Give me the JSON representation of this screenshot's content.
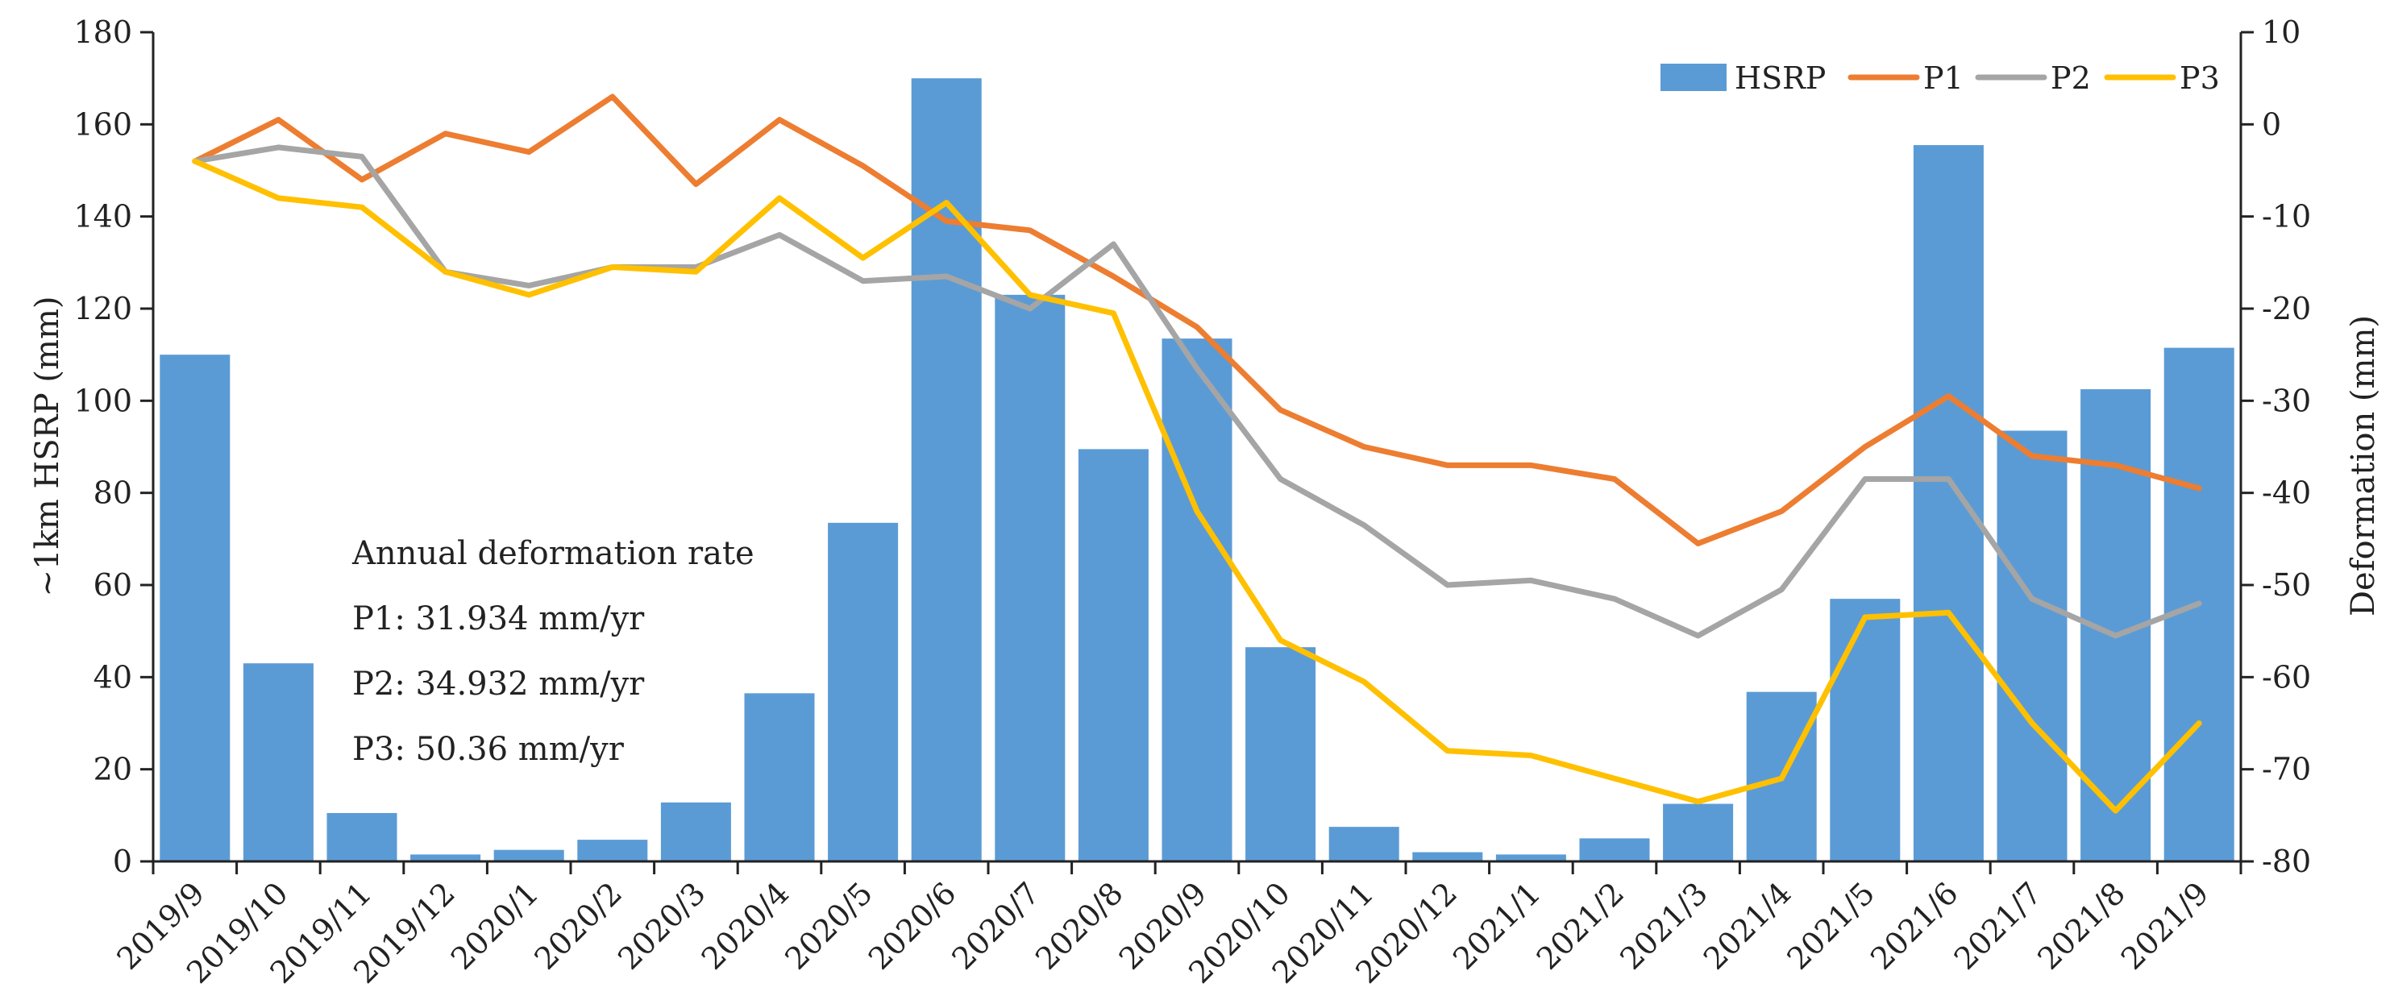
{
  "chart_data": {
    "type": "bar+line",
    "categories": [
      "2019/9",
      "2019/10",
      "2019/11",
      "2019/12",
      "2020/1",
      "2020/2",
      "2020/3",
      "2020/4",
      "2020/5",
      "2020/6",
      "2020/7",
      "2020/8",
      "2020/9",
      "2020/10",
      "2020/11",
      "2020/12",
      "2021/1",
      "2021/2",
      "2021/3",
      "2021/4",
      "2021/5",
      "2021/6",
      "2021/7",
      "2021/8",
      "2021/9"
    ],
    "bars": {
      "name": "HSRP",
      "axis": "left",
      "color": "#5B9BD5",
      "values": [
        110,
        43,
        10.5,
        1.5,
        2.5,
        4.7,
        12.8,
        36.5,
        73.5,
        170,
        123,
        89.5,
        113.5,
        46.5,
        7.5,
        2,
        1.5,
        5,
        12.5,
        36.8,
        57,
        155.5,
        93.5,
        102.5,
        111.5
      ]
    },
    "series": [
      {
        "name": "P1",
        "axis": "right",
        "color": "#ED7D31",
        "values": [
          -4,
          0.5,
          -6,
          -1,
          -3,
          3,
          -6.5,
          0.5,
          -4.5,
          -10.5,
          -11.5,
          -16.5,
          -22,
          -31,
          -35,
          -37,
          -37,
          -38.5,
          -45.5,
          -42,
          -35,
          -29.5,
          -36,
          -37,
          -39.5
        ]
      },
      {
        "name": "P2",
        "axis": "right",
        "color": "#A5A5A5",
        "values": [
          -4,
          -2.5,
          -3.5,
          -16,
          -17.5,
          -15.5,
          -15.5,
          -12,
          -17,
          -16.5,
          -20,
          -13,
          -26.5,
          -38.5,
          -43.5,
          -50,
          -49.5,
          -51.5,
          -55.5,
          -50.5,
          -38.5,
          -38.5,
          -51.5,
          -55.5,
          -52
        ]
      },
      {
        "name": "P3",
        "axis": "right",
        "color": "#FFC000",
        "values": [
          -4,
          -8,
          -9,
          -16,
          -18.5,
          -15.5,
          -16,
          -8,
          -14.5,
          -8.5,
          -18.5,
          -20.5,
          -42,
          -56,
          -60.5,
          -68,
          -68.5,
          -71,
          -73.5,
          -71,
          -53.5,
          -53,
          -65,
          -74.5,
          -65
        ]
      }
    ],
    "y_left": {
      "label": "~1km HSRP (mm)",
      "lim": [
        0,
        180
      ],
      "ticks": [
        0,
        20,
        40,
        60,
        80,
        100,
        120,
        140,
        160,
        180
      ]
    },
    "y_right": {
      "label": "Deformation (mm)",
      "lim": [
        -80,
        10
      ],
      "ticks": [
        -80,
        -70,
        -60,
        -50,
        -40,
        -30,
        -20,
        -10,
        0,
        10
      ]
    },
    "xlabel": "",
    "title": "",
    "grid": false,
    "legend": {
      "position": "top-right",
      "entries": [
        "HSRP",
        "P1",
        "P2",
        "P3"
      ]
    },
    "annotation": {
      "title": "Annual deformation rate",
      "lines": [
        "P1: 31.934 mm/yr",
        "P2: 34.932 mm/yr",
        "P3: 50.36 mm/yr"
      ]
    }
  }
}
